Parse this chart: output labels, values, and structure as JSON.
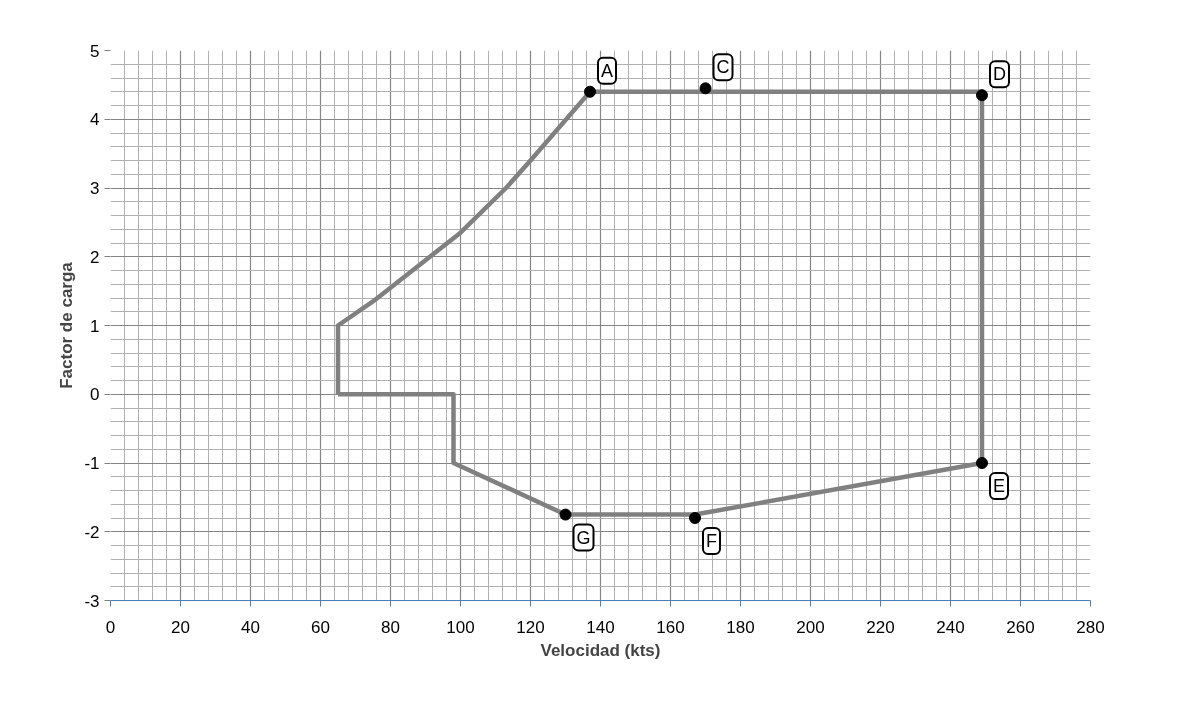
{
  "chart_data": {
    "type": "line",
    "xlabel": "Velocidad (kts)",
    "ylabel": "Factor de carga",
    "xlim": [
      0,
      280
    ],
    "ylim": [
      -3,
      5
    ],
    "xticks": [
      0,
      20,
      40,
      60,
      80,
      100,
      120,
      140,
      160,
      180,
      200,
      220,
      240,
      260,
      280
    ],
    "yticks": [
      -3,
      -2,
      -1,
      0,
      1,
      2,
      3,
      4,
      5
    ],
    "grid": true,
    "series": [
      {
        "color": "#808080",
        "marker": "none",
        "x": [
          65,
          65,
          75,
          90,
          100,
          113,
          120,
          137,
          249,
          249
        ],
        "values": [
          0,
          1,
          1.35,
          1.95,
          2.35,
          3,
          3.4,
          4.4,
          4.4,
          -1
        ]
      },
      {
        "color": "#808080",
        "marker": "none",
        "x": [
          65,
          98,
          98,
          130,
          167,
          249
        ],
        "values": [
          0,
          0,
          -1,
          -1.75,
          -1.75,
          -1
        ]
      },
      {
        "type": "scatter",
        "color": "#000000",
        "marker": "circle",
        "x": [
          137,
          170,
          249,
          249,
          167,
          130
        ],
        "values": [
          4.4,
          4.45,
          4.35,
          -1,
          -1.8,
          -1.75
        ]
      }
    ],
    "annotations": [
      {
        "text": "A",
        "x": 137,
        "y": 4.4
      },
      {
        "text": "C",
        "x": 170,
        "y": 4.45
      },
      {
        "text": "D",
        "x": 249,
        "y": 4.35
      },
      {
        "text": "E",
        "x": 249,
        "y": -1
      },
      {
        "text": "F",
        "x": 167,
        "y": -1.8
      },
      {
        "text": "G",
        "x": 130,
        "y": -1.75
      }
    ]
  }
}
